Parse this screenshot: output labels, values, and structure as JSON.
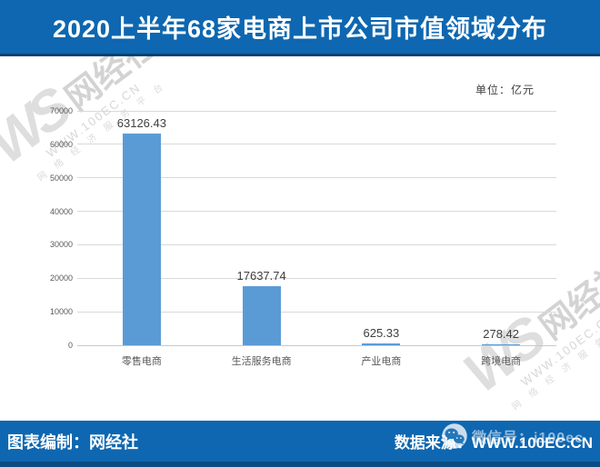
{
  "title_bar": {
    "title": "2020上半年68家电商上市公司市值领域分布"
  },
  "chart": {
    "unit_label": "单位：亿元"
  },
  "chart_data": {
    "type": "bar",
    "title": "2020上半年68家电商上市公司市值领域分布",
    "categories": [
      "零售电商",
      "生活服务电商",
      "产业电商",
      "跨境电商"
    ],
    "values": [
      63126.43,
      17637.74,
      625.33,
      278.42
    ],
    "value_labels": [
      "63126.43",
      "17637.74",
      "625.33",
      "278.42"
    ],
    "unit": "亿元",
    "xlabel": "",
    "ylabel": "",
    "ylim": [
      0,
      70000
    ],
    "yticks": [
      0,
      10000,
      20000,
      30000,
      40000,
      50000,
      60000,
      70000
    ],
    "grid": true,
    "legend_position": "none",
    "bar_color": "#5b9bd5"
  },
  "watermark": {
    "initials": "WS",
    "brand": "网经社",
    "site": "WWW.100EC.CN",
    "tagline": "网 络 经 济 服 务 平 台"
  },
  "footer": {
    "credit": "图表编制：网经社",
    "source": "数据来源：WWW.100EC.CN",
    "wechat": "微信号：i100ec"
  },
  "colors": {
    "banner_blue": "#0e67b0",
    "bar_blue": "#5b9bd5",
    "grid_gray": "#d9d9d9",
    "axis_text": "#595959",
    "label_text": "#404040",
    "watermark_gray": "#cdcdcd"
  }
}
